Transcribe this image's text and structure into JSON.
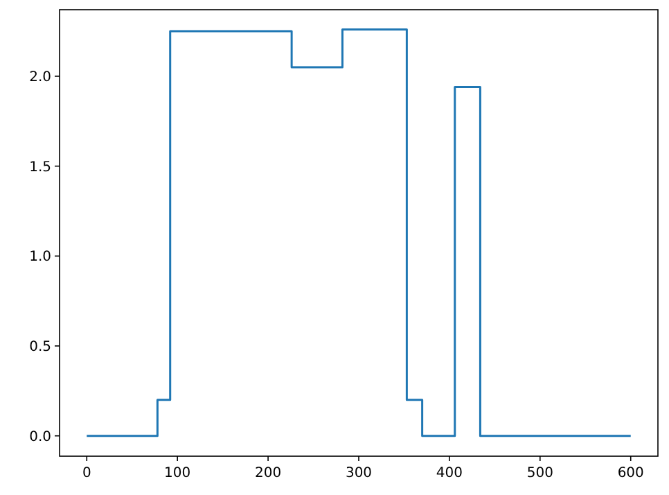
{
  "chart_data": {
    "type": "step",
    "x": [
      0,
      78,
      92,
      226,
      282,
      353,
      370,
      406,
      434,
      600
    ],
    "series": [
      {
        "color": "#1f77b4",
        "values": [
          0,
          0.2,
          2.25,
          2.05,
          2.26,
          0.2,
          0,
          1.94,
          0,
          0
        ]
      }
    ],
    "xlim": [
      -30,
      630
    ],
    "xticks": [
      0,
      100,
      200,
      300,
      400,
      500,
      600
    ],
    "ylim": [
      -0.113,
      2.37
    ],
    "yticks": [
      {
        "value": 0,
        "label": "0.0"
      },
      {
        "value": 0.5,
        "label": "0.5"
      },
      {
        "value": 1,
        "label": "1.0"
      },
      {
        "value": 1.5,
        "label": "1.5"
      },
      {
        "value": 2,
        "label": "2.0"
      }
    ],
    "grid": false
  }
}
